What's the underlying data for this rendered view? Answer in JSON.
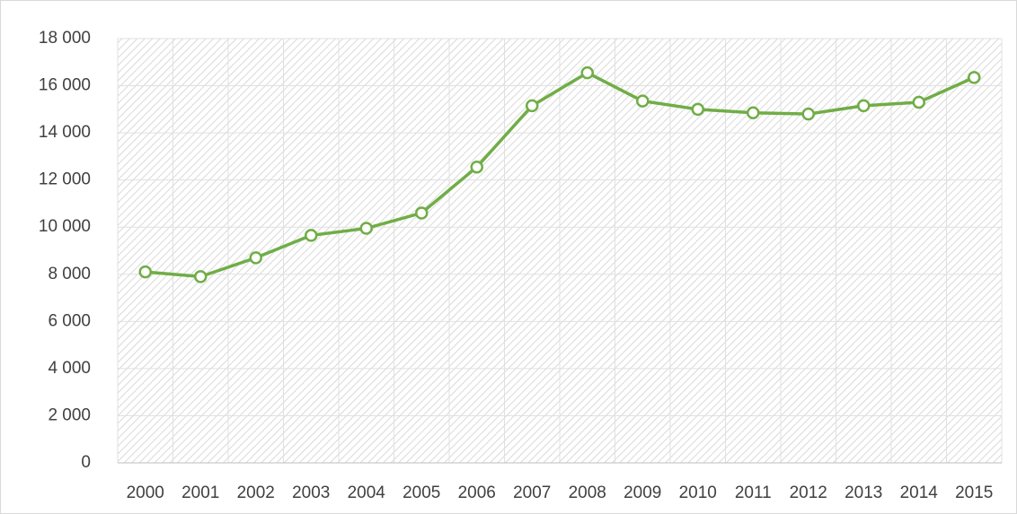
{
  "chart_data": {
    "type": "line",
    "categories": [
      "2000",
      "2001",
      "2002",
      "2003",
      "2004",
      "2005",
      "2006",
      "2007",
      "2008",
      "2009",
      "2010",
      "2011",
      "2012",
      "2013",
      "2014",
      "2015"
    ],
    "series": [
      {
        "color": "#70ad47",
        "values": [
          8100,
          7900,
          8700,
          9650,
          9950,
          10600,
          12550,
          15150,
          16550,
          15350,
          15000,
          14850,
          14800,
          15150,
          15300,
          16350
        ]
      }
    ],
    "ylim": [
      0,
      18000
    ],
    "yticks": [
      0,
      {
        "value": 2000,
        "label": "2 000"
      },
      {
        "value": 4000,
        "label": "4 000"
      },
      {
        "value": 6000,
        "label": "6 000"
      },
      {
        "value": 8000,
        "label": "8 000"
      },
      {
        "value": 10000,
        "label": "10 000"
      },
      {
        "value": 12000,
        "label": "12 000"
      },
      {
        "value": 14000,
        "label": "14 000"
      },
      {
        "value": 16000,
        "label": "16 000"
      },
      {
        "value": 18000,
        "label": "18 000"
      }
    ],
    "grid": true
  }
}
